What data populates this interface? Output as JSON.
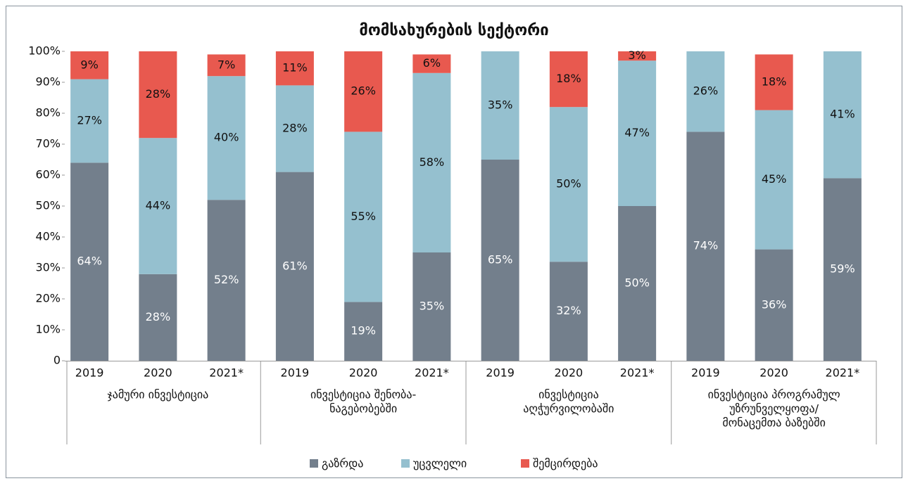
{
  "chart_data": {
    "type": "stacked-bar",
    "title": "მომსახურების სექტორი",
    "categories": [
      "2019",
      "2020",
      "2021*",
      "2019",
      "2020",
      "2021*",
      "2019",
      "2020",
      "2021*",
      "2019",
      "2020",
      "2021*"
    ],
    "groups": [
      [
        "ჯამური ინვესტიცია"
      ],
      [
        "ინვესტიცია შენობა-",
        "ნაგებობებში"
      ],
      [
        "ინვესტიცია",
        "აღჭურვილობაში"
      ],
      [
        "ინვესტიცია პროგრამულ",
        "უზრუნველყოფა/",
        "მონაცემთა ბაზებში"
      ]
    ],
    "series": [
      {
        "name": "გაზრდა",
        "color": "#737f8c",
        "values": [
          64,
          28,
          52,
          61,
          19,
          35,
          65,
          32,
          50,
          74,
          36,
          59
        ],
        "value_labels": [
          "64%",
          "28%",
          "52%",
          "61%",
          "19%",
          "35%",
          "65%",
          "32%",
          "50%",
          "74%",
          "36%",
          "59%"
        ]
      },
      {
        "name": "უცვლელი",
        "color": "#95c0cf",
        "values": [
          27,
          44,
          40,
          28,
          55,
          58,
          35,
          50,
          47,
          26,
          45,
          41
        ],
        "value_labels": [
          "27%",
          "44%",
          "40%",
          "28%",
          "55%",
          "58%",
          "35%",
          "50%",
          "47%",
          "26%",
          "45%",
          "41%"
        ]
      },
      {
        "name": "შემცირდება",
        "color": "#e8594f",
        "values": [
          9,
          28,
          7,
          11,
          26,
          6,
          null,
          18,
          3,
          null,
          18,
          null
        ],
        "value_labels": [
          "9%",
          "28%",
          "7%",
          "11%",
          "26%",
          "6%",
          null,
          "18%",
          "3%",
          null,
          "18%",
          null
        ]
      }
    ],
    "ylim": [
      0,
      100
    ],
    "yticks": [
      0,
      {
        "value": 10,
        "label": "10%"
      },
      {
        "value": 20,
        "label": "20%"
      },
      {
        "value": 30,
        "label": "30%"
      },
      {
        "value": 40,
        "label": "40%"
      },
      {
        "value": 50,
        "label": "50%"
      },
      {
        "value": 60,
        "label": "60%"
      },
      {
        "value": 70,
        "label": "70%"
      },
      {
        "value": 80,
        "label": "80%"
      },
      {
        "value": 90,
        "label": "90%"
      },
      {
        "value": 100,
        "label": "100%"
      }
    ]
  }
}
